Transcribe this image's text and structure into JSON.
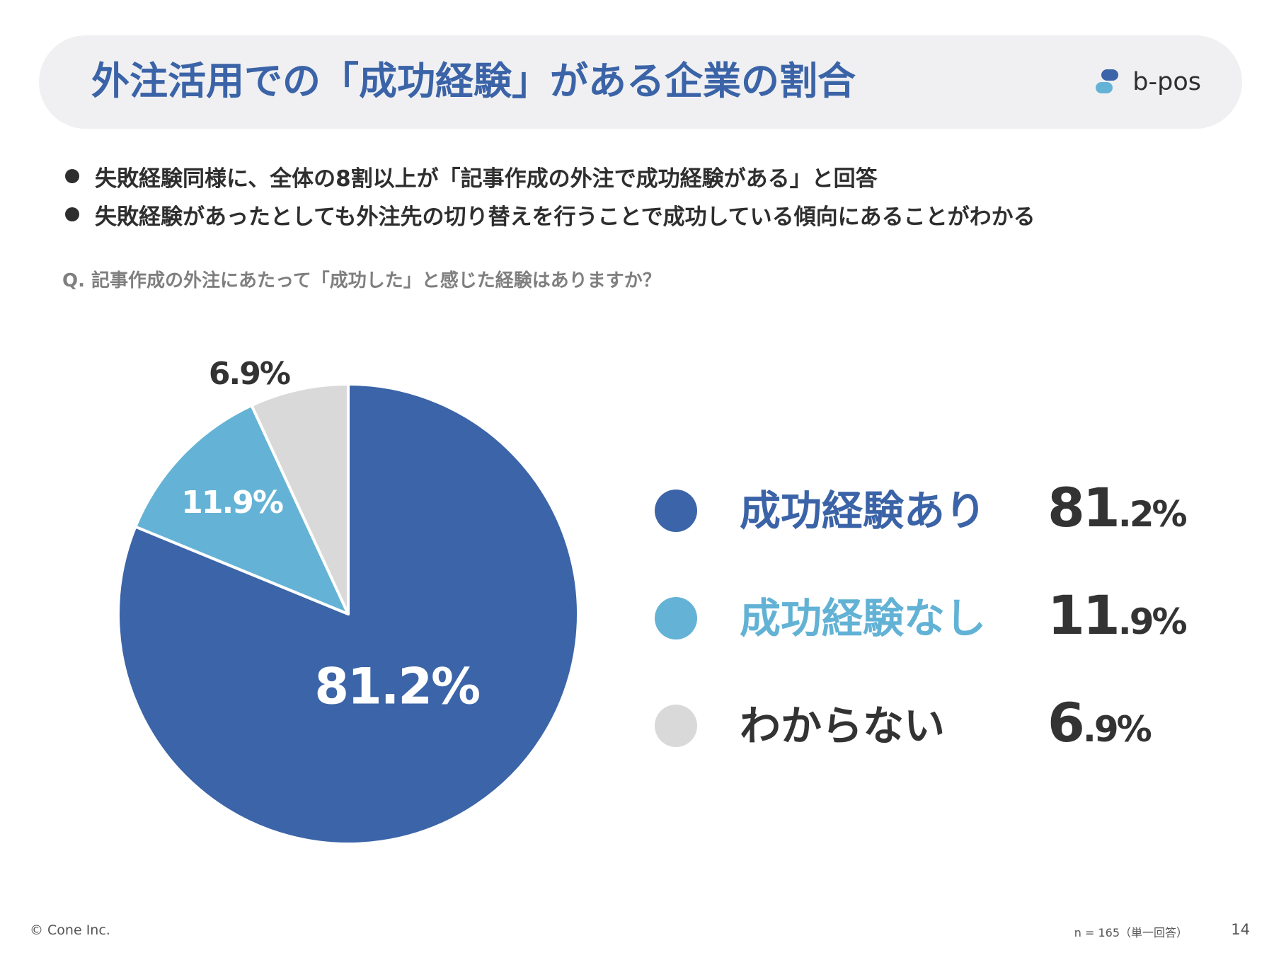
{
  "header": {
    "title": "外注活用での「成功経験」がある企業の割合",
    "logo_text": "b-pos",
    "logo_icon": "b-pos-logo-icon"
  },
  "bullets": [
    "失敗経験同様に、全体の8割以上が「記事作成の外注で成功経験がある」と回答",
    "失敗経験があったとしても外注先の切り替えを行うことで成功している傾向にあることがわかる"
  ],
  "question": "Q. 記事作成の外注にあたって「成功した」と感じた経験はありますか？",
  "chart_data": {
    "type": "pie",
    "categories": [
      "成功経験あり",
      "成功経験なし",
      "わからない"
    ],
    "values": [
      81.2,
      11.9,
      6.9
    ],
    "labels": [
      "81.2%",
      "11.9%",
      "6.9%"
    ],
    "colors": [
      "#3c64a8",
      "#64b3d6",
      "#d9d9d9"
    ],
    "label_colors": [
      "#ffffff",
      "#ffffff",
      "#333333"
    ],
    "start_angle_deg": 0,
    "direction": "clockwise",
    "legend_position": "right"
  },
  "legend": [
    {
      "label": "成功経験あり",
      "value_main": "81",
      "value_rest": ".2%",
      "color": "#3c64a8",
      "text_color": "#3b63a7"
    },
    {
      "label": "成功経験なし",
      "value_main": "11",
      "value_rest": ".9%",
      "color": "#64b3d6",
      "text_color": "#62b2d5"
    },
    {
      "label": "わからない",
      "value_main": "6",
      "value_rest": ".9%",
      "color": "#d9d9d9",
      "text_color": "#333333"
    }
  ],
  "footer": {
    "copyright": "© Cone Inc.",
    "sample_note": "n = 165（単一回答）",
    "page_number": "14"
  }
}
